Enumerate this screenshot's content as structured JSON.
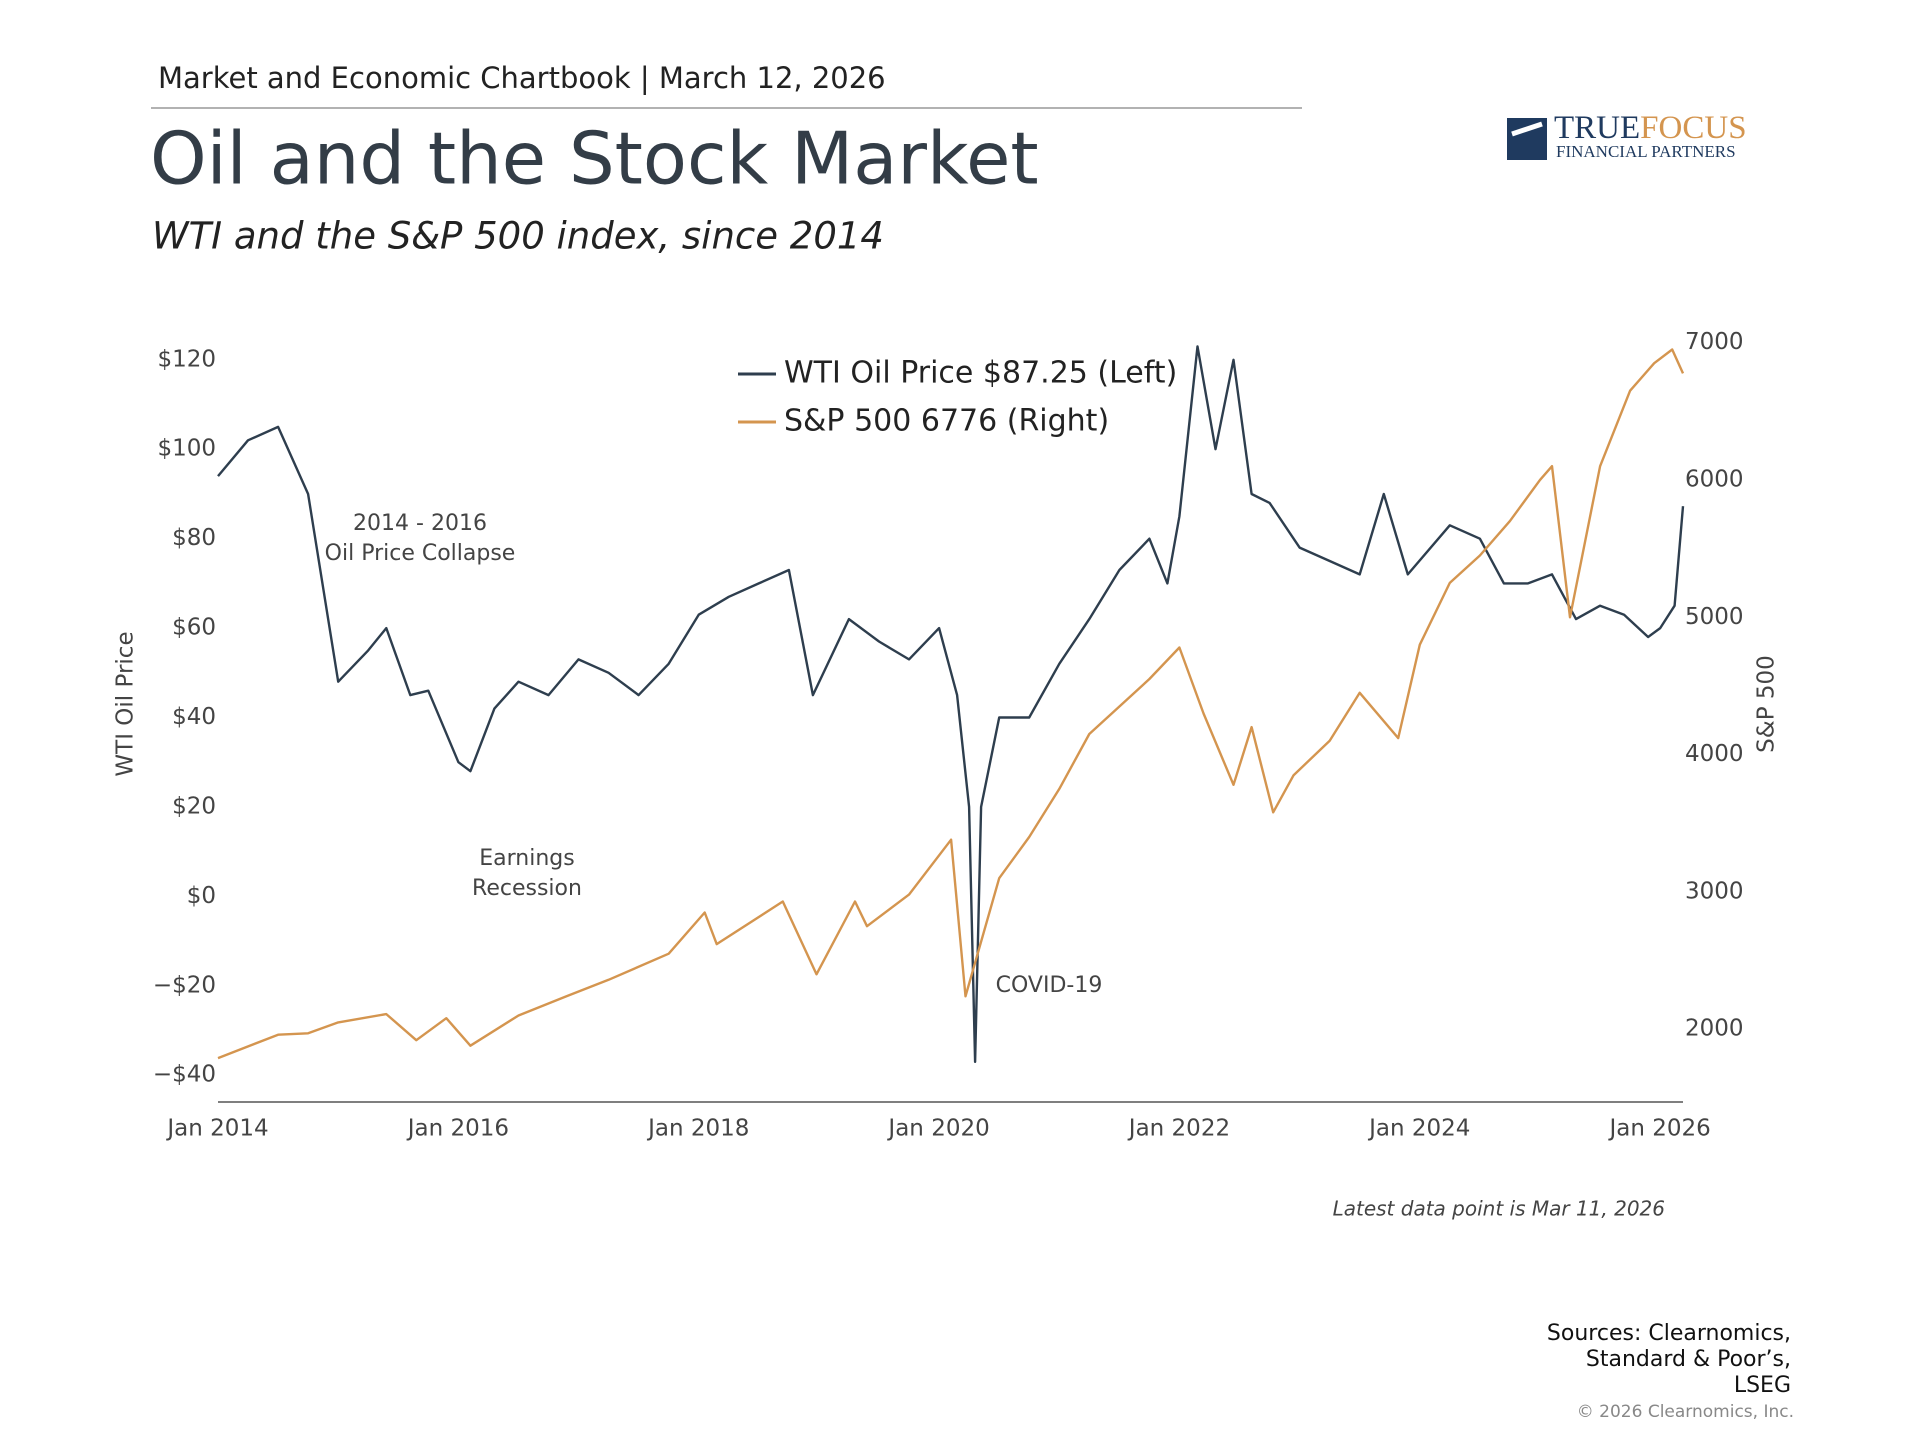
{
  "header": "Market and Economic Chartbook | March 12, 2026",
  "logo": {
    "name_parts": [
      "TRUE",
      "FOCUS"
    ],
    "tagline": "FINANCIAL PARTNERS"
  },
  "chart_data": {
    "type": "line",
    "title": "Oil and the Stock Market",
    "subtitle": "WTI and the S&P 500 index, since 2014",
    "ylabel": "WTI Oil Price",
    "y2label": "S&P 500",
    "xlim": [
      2014,
      2026.19
    ],
    "xticks": [
      {
        "value": 2014,
        "label": "Jan 2014"
      },
      {
        "value": 2016,
        "label": "Jan 2016"
      },
      {
        "value": 2018,
        "label": "Jan 2018"
      },
      {
        "value": 2020,
        "label": "Jan 2020"
      },
      {
        "value": 2022,
        "label": "Jan 2022"
      },
      {
        "value": 2024,
        "label": "Jan 2024"
      },
      {
        "value": 2026,
        "label": "Jan 2026"
      }
    ],
    "ylim": [
      -46,
      126
    ],
    "yticks": [
      {
        "value": -40,
        "label": "−$40"
      },
      {
        "value": -20,
        "label": "−$20"
      },
      {
        "value": 0,
        "label": "$0"
      },
      {
        "value": 20,
        "label": "$20"
      },
      {
        "value": 40,
        "label": "$40"
      },
      {
        "value": 60,
        "label": "$60"
      },
      {
        "value": 80,
        "label": "$80"
      },
      {
        "value": 100,
        "label": "$100"
      },
      {
        "value": 120,
        "label": "$120"
      }
    ],
    "y2lim": [
      1470,
      7070
    ],
    "y2ticks": [
      2000,
      3000,
      4000,
      5000,
      6000,
      7000
    ],
    "legend": "top",
    "series": [
      {
        "name": "WTI Oil Price $87.25 (Left)",
        "color": "#2e3e4e",
        "axis": "y",
        "x": [
          2014.0,
          2014.25,
          2014.5,
          2014.75,
          2015.0,
          2015.25,
          2015.4,
          2015.6,
          2015.75,
          2016.0,
          2016.1,
          2016.3,
          2016.5,
          2016.75,
          2017.0,
          2017.25,
          2017.5,
          2017.75,
          2018.0,
          2018.25,
          2018.5,
          2018.75,
          2018.95,
          2019.25,
          2019.5,
          2019.75,
          2020.0,
          2020.15,
          2020.25,
          2020.3,
          2020.35,
          2020.5,
          2020.75,
          2021.0,
          2021.25,
          2021.5,
          2021.75,
          2021.9,
          2022.0,
          2022.15,
          2022.3,
          2022.45,
          2022.6,
          2022.75,
          2023.0,
          2023.25,
          2023.5,
          2023.7,
          2023.9,
          2024.25,
          2024.5,
          2024.7,
          2024.9,
          2025.1,
          2025.3,
          2025.5,
          2025.7,
          2025.9,
          2026.0,
          2026.12,
          2026.19
        ],
        "values": [
          94,
          102,
          105,
          90,
          48,
          55,
          60,
          45,
          46,
          30,
          28,
          42,
          48,
          45,
          53,
          50,
          45,
          52,
          63,
          67,
          70,
          73,
          45,
          62,
          57,
          53,
          60,
          45,
          20,
          -37,
          20,
          40,
          40,
          52,
          62,
          73,
          80,
          70,
          85,
          123,
          100,
          120,
          90,
          88,
          78,
          75,
          72,
          90,
          72,
          83,
          80,
          70,
          70,
          72,
          62,
          65,
          63,
          58,
          60,
          65,
          87.25
        ]
      },
      {
        "name": "S&P 500 6776 (Right)",
        "color": "#d4954f",
        "axis": "y2",
        "x": [
          2014.0,
          2014.5,
          2014.75,
          2015.0,
          2015.4,
          2015.65,
          2015.9,
          2016.1,
          2016.5,
          2016.9,
          2017.25,
          2017.75,
          2018.05,
          2018.15,
          2018.7,
          2018.98,
          2019.3,
          2019.4,
          2019.75,
          2020.1,
          2020.22,
          2020.5,
          2020.75,
          2021.0,
          2021.25,
          2021.5,
          2021.75,
          2022.0,
          2022.2,
          2022.45,
          2022.6,
          2022.78,
          2022.95,
          2023.25,
          2023.5,
          2023.82,
          2024.0,
          2024.25,
          2024.5,
          2024.75,
          2025.0,
          2025.1,
          2025.25,
          2025.5,
          2025.75,
          2025.95,
          2026.1,
          2026.19
        ],
        "values": [
          1790,
          1960,
          1970,
          2050,
          2110,
          1920,
          2080,
          1880,
          2100,
          2240,
          2360,
          2550,
          2850,
          2620,
          2930,
          2400,
          2930,
          2750,
          2980,
          3380,
          2240,
          3100,
          3400,
          3750,
          4150,
          4350,
          4550,
          4780,
          4300,
          3780,
          4200,
          3580,
          3850,
          4100,
          4450,
          4120,
          4800,
          5250,
          5450,
          5700,
          6000,
          6100,
          5000,
          6100,
          6650,
          6850,
          6950,
          6776
        ]
      }
    ],
    "annotations": [
      [
        "2014 - 2016",
        "Oil Price Collapse"
      ],
      [
        "Earnings",
        "Recession"
      ],
      [
        "COVID-19"
      ]
    ]
  },
  "note": "Latest data point is Mar 11, 2026",
  "sources": [
    "Sources: Clearnomics,",
    "Standard & Poor’s,",
    "LSEG"
  ],
  "copyright": "© 2026 Clearnomics, Inc."
}
